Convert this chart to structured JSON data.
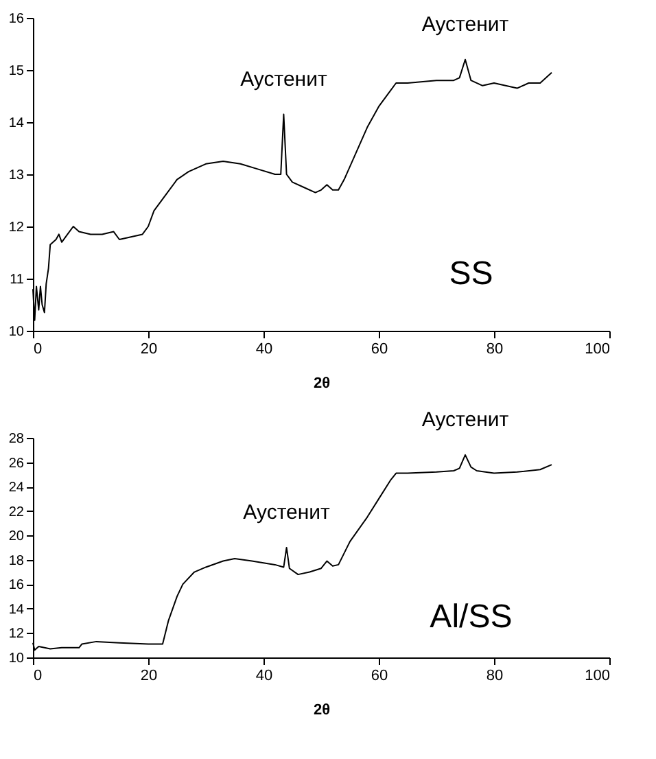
{
  "chart_data": [
    {
      "type": "line",
      "xlabel": "2θ",
      "xlim": [
        0,
        100
      ],
      "xticks": [
        0,
        20,
        40,
        60,
        80,
        100
      ],
      "ylim": [
        10,
        16
      ],
      "yticks": [
        10,
        11,
        12,
        13,
        14,
        15,
        16
      ],
      "grid": false,
      "marker": "none",
      "line_style": "solid",
      "annotations": [
        {
          "text": "Аустенит",
          "x": 43.5,
          "y": 14.15
        },
        {
          "text": "Аустенит",
          "x": 75,
          "y": 15.2
        },
        "SS"
      ],
      "series": [
        {
          "color": "#000000",
          "x": [
            0,
            0.3,
            0.6,
            1,
            1.3,
            1.6,
            2,
            2.3,
            2.7,
            3,
            4,
            4.5,
            5,
            6,
            7,
            8,
            10,
            12,
            14,
            15,
            17,
            19,
            20,
            21,
            23,
            25,
            27,
            30,
            33,
            36,
            39,
            42,
            43,
            43.5,
            44,
            45,
            47,
            49,
            50,
            51,
            52,
            53,
            54,
            56,
            58,
            60,
            62,
            63,
            65,
            70,
            73,
            74,
            75,
            75.5,
            76,
            78,
            80,
            82,
            84,
            86,
            88,
            90
          ],
          "values": [
            10.8,
            10.2,
            10.85,
            10.4,
            10.85,
            10.5,
            10.35,
            10.9,
            11.2,
            11.65,
            11.75,
            11.85,
            11.7,
            11.85,
            12.0,
            11.9,
            11.85,
            11.85,
            11.9,
            11.75,
            11.8,
            11.85,
            12.0,
            12.3,
            12.6,
            12.9,
            13.05,
            13.2,
            13.25,
            13.2,
            13.1,
            13.0,
            13.0,
            14.15,
            13.0,
            12.85,
            12.75,
            12.65,
            12.7,
            12.8,
            12.7,
            12.7,
            12.9,
            13.4,
            13.9,
            14.3,
            14.6,
            14.75,
            14.75,
            14.8,
            14.8,
            14.85,
            15.2,
            15.0,
            14.8,
            14.7,
            14.75,
            14.7,
            14.65,
            14.75,
            14.75,
            14.95
          ]
        }
      ]
    },
    {
      "type": "line",
      "xlabel": "2θ",
      "xlim": [
        0,
        100
      ],
      "xticks": [
        0,
        20,
        40,
        60,
        80,
        100
      ],
      "ylim": [
        10,
        28
      ],
      "yticks": [
        10,
        12,
        14,
        16,
        18,
        20,
        22,
        24,
        26,
        28
      ],
      "grid": false,
      "marker": "none",
      "line_style": "solid",
      "annotations": [
        {
          "text": "Аустенит",
          "x": 44,
          "y": 19.0
        },
        {
          "text": "Аустенит",
          "x": 75,
          "y": 26.6
        },
        "Al/SS"
      ],
      "series": [
        {
          "color": "#000000",
          "x": [
            0,
            0.3,
            1,
            3,
            5,
            8,
            8.5,
            11,
            15,
            20,
            22.5,
            23.5,
            25,
            26,
            28,
            30,
            33,
            35,
            38,
            42,
            43.5,
            44,
            44.5,
            46,
            48,
            50,
            51,
            52,
            53,
            55,
            58,
            60,
            62,
            63,
            65,
            70,
            73,
            74,
            75,
            76,
            77,
            80,
            84,
            88,
            90
          ],
          "values": [
            11.2,
            10.6,
            10.9,
            10.7,
            10.8,
            10.8,
            11.1,
            11.3,
            11.2,
            11.1,
            11.1,
            13.0,
            15.0,
            16.0,
            17.0,
            17.4,
            17.9,
            18.1,
            17.9,
            17.6,
            17.4,
            19.0,
            17.3,
            16.8,
            17.0,
            17.3,
            17.9,
            17.5,
            17.6,
            19.5,
            21.5,
            23.0,
            24.5,
            25.1,
            25.1,
            25.2,
            25.3,
            25.5,
            26.6,
            25.6,
            25.3,
            25.1,
            25.2,
            25.4,
            25.8
          ]
        }
      ]
    }
  ]
}
